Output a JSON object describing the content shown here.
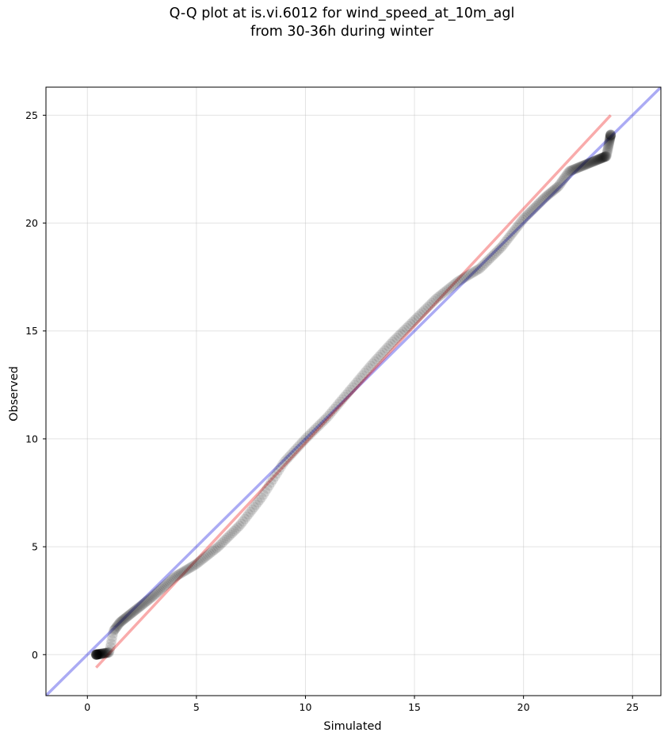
{
  "chart_data": {
    "type": "scatter",
    "title_line1": "Q-Q plot at is.vi.6012 for wind_speed_at_10m_agl",
    "title_line2": "from 30-36h during winter",
    "xlabel": "Simulated",
    "ylabel": "Observed",
    "xlim": [
      -1.9,
      26.3
    ],
    "ylim": [
      -1.9,
      26.3
    ],
    "xticks": [
      "0",
      "5",
      "10",
      "15",
      "20",
      "25"
    ],
    "yticks": [
      "0",
      "5",
      "10",
      "15",
      "20",
      "25"
    ],
    "grid": true,
    "reference_line": {
      "from": [
        -1.9,
        -1.9
      ],
      "to": [
        26.3,
        26.3
      ],
      "color": "#0000dd"
    },
    "fit_line": {
      "from": [
        0.4,
        -0.6
      ],
      "to": [
        24.0,
        25.0
      ],
      "color": "#ee0000"
    },
    "quantiles_profile": {
      "x": [
        0.4,
        1.0,
        1.2,
        1.5,
        2.0,
        3.0,
        4.0,
        5.0,
        6.0,
        7.0,
        8.0,
        9.0,
        10.0,
        11.0,
        12.0,
        13.0,
        14.0,
        15.0,
        16.0,
        17.0,
        18.0,
        19.0,
        20.0,
        21.0,
        21.6,
        22.1,
        23.8,
        24.0
      ],
      "y": [
        0.0,
        0.1,
        1.1,
        1.5,
        1.9,
        2.7,
        3.6,
        4.2,
        5.0,
        6.0,
        7.3,
        8.9,
        10.0,
        11.0,
        12.2,
        13.4,
        14.5,
        15.5,
        16.5,
        17.3,
        17.9,
        18.9,
        20.2,
        21.2,
        21.7,
        22.4,
        23.1,
        24.1
      ]
    },
    "n_points": 400,
    "marker_color": "#000000"
  }
}
